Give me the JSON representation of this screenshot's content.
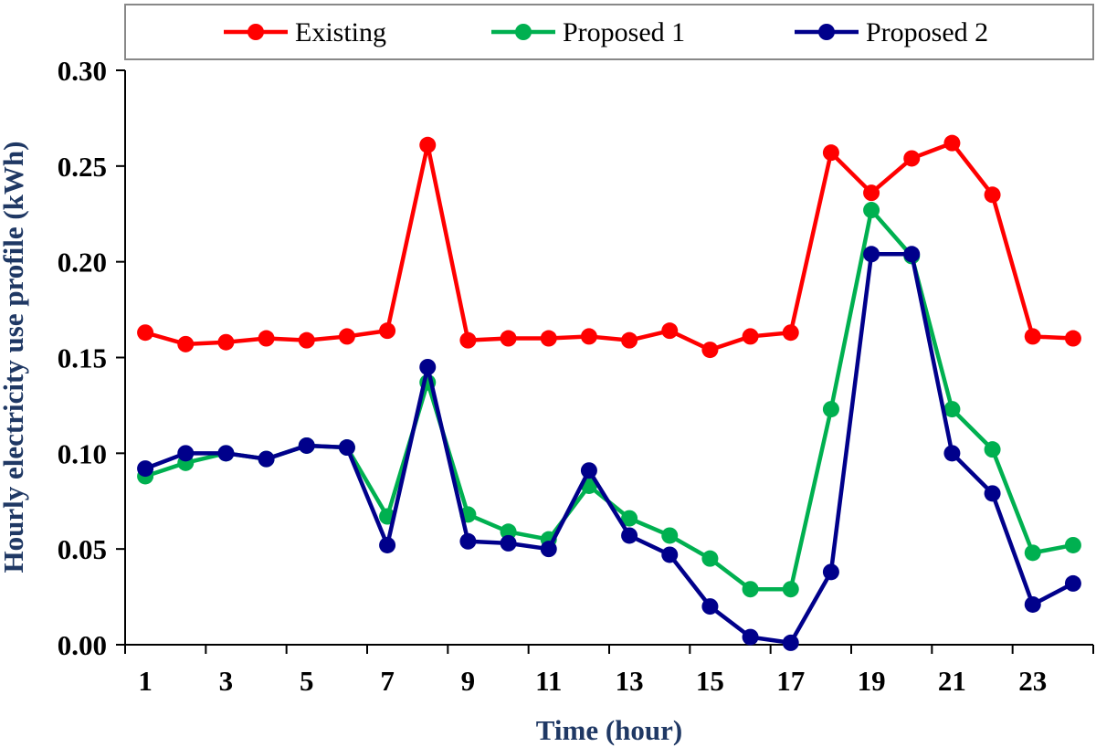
{
  "chart_data": {
    "type": "line",
    "xlabel": "Time (hour)",
    "ylabel": "Hourly electricity use profile (kWh)",
    "x": [
      1,
      2,
      3,
      4,
      5,
      6,
      7,
      8,
      9,
      10,
      11,
      12,
      13,
      14,
      15,
      16,
      17,
      18,
      19,
      20,
      21,
      22,
      23,
      24
    ],
    "x_tick_labels": [
      "1",
      "3",
      "5",
      "7",
      "9",
      "11",
      "13",
      "15",
      "17",
      "19",
      "21",
      "23"
    ],
    "y_tick_labels": [
      "0.00",
      "0.05",
      "0.10",
      "0.15",
      "0.20",
      "0.25",
      "0.30"
    ],
    "xlim": [
      0.5,
      24.5
    ],
    "ylim": [
      0,
      0.3
    ],
    "grid": false,
    "legend_position": "top",
    "series": [
      {
        "name": "Existing",
        "color": "#ff0000",
        "values": [
          0.163,
          0.157,
          0.158,
          0.16,
          0.159,
          0.161,
          0.164,
          0.261,
          0.159,
          0.16,
          0.16,
          0.161,
          0.159,
          0.164,
          0.154,
          0.161,
          0.163,
          0.257,
          0.236,
          0.254,
          0.262,
          0.235,
          0.161,
          0.16
        ]
      },
      {
        "name": "Proposed 1",
        "color": "#00b050",
        "values": [
          0.088,
          0.095,
          0.1,
          0.097,
          0.104,
          0.103,
          0.067,
          0.137,
          0.068,
          0.059,
          0.055,
          0.083,
          0.066,
          0.057,
          0.045,
          0.029,
          0.029,
          0.123,
          0.227,
          0.203,
          0.123,
          0.102,
          0.048,
          0.052
        ]
      },
      {
        "name": "Proposed 2",
        "color": "#00008b",
        "values": [
          0.092,
          0.1,
          0.1,
          0.097,
          0.104,
          0.103,
          0.052,
          0.145,
          0.054,
          0.053,
          0.05,
          0.091,
          0.057,
          0.047,
          0.02,
          0.004,
          0.001,
          0.038,
          0.204,
          0.204,
          0.1,
          0.079,
          0.021,
          0.032
        ]
      }
    ]
  }
}
